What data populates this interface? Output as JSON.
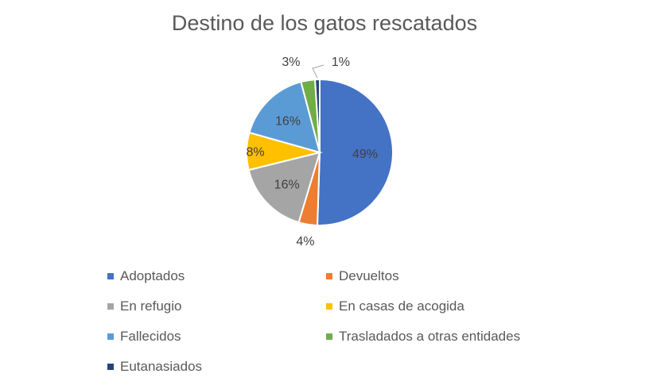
{
  "chart_data": {
    "type": "pie",
    "title": "Destino de los gatos rescatados",
    "categories": [
      "Adoptados",
      "Devueltos",
      "En refugio",
      "En casas de acogida",
      "Fallecidos",
      "Trasladados a otras entidades",
      "Eutanasiados"
    ],
    "values": [
      49,
      4,
      16,
      8,
      16,
      3,
      1
    ],
    "data_labels": [
      "49%",
      "4%",
      "16%",
      "8%",
      "16%",
      "3%",
      "1%"
    ],
    "colors": [
      "#4472C4",
      "#ED7D31",
      "#A5A5A5",
      "#FFC000",
      "#5B9BD5",
      "#70AD47",
      "#264478"
    ],
    "legend_position": "bottom"
  }
}
